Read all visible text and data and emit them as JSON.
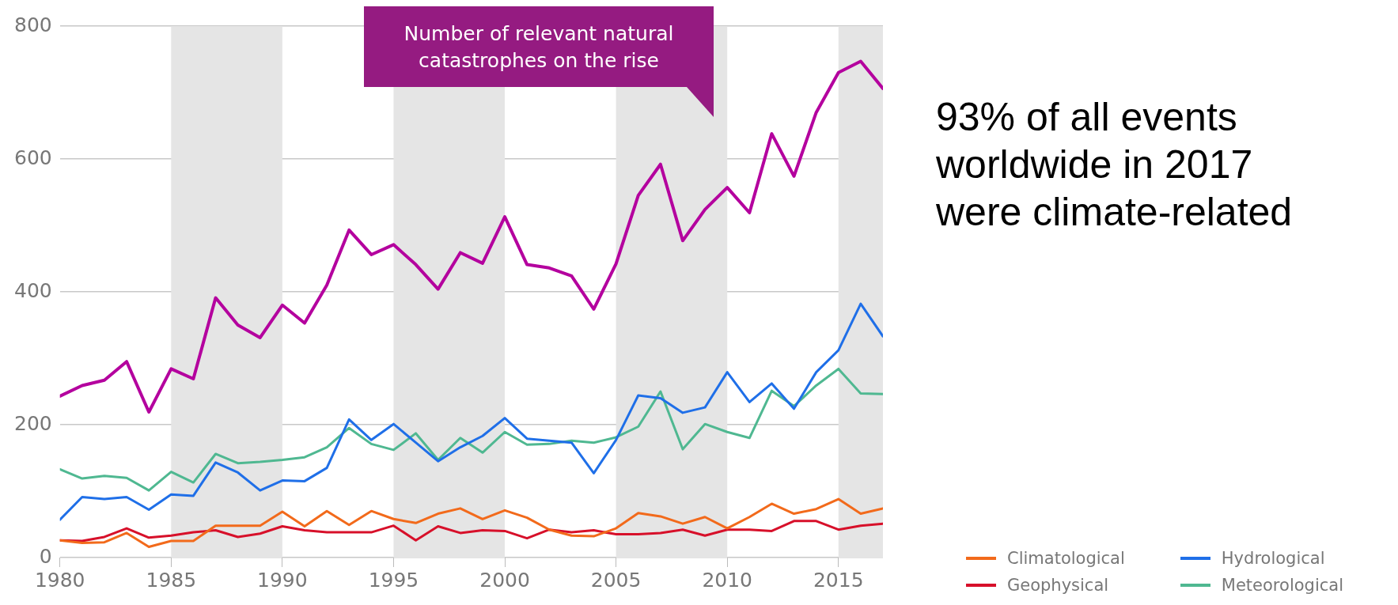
{
  "chart_data": {
    "type": "line",
    "x": [
      1980,
      1981,
      1982,
      1983,
      1984,
      1985,
      1986,
      1987,
      1988,
      1989,
      1990,
      1991,
      1992,
      1993,
      1994,
      1995,
      1996,
      1997,
      1998,
      1999,
      2000,
      2001,
      2002,
      2003,
      2004,
      2005,
      2006,
      2007,
      2008,
      2009,
      2010,
      2011,
      2012,
      2013,
      2014,
      2015,
      2016,
      2017
    ],
    "series": [
      {
        "name": "Climatological",
        "color": "#f26a1b",
        "values": [
          26,
          22,
          23,
          37,
          16,
          25,
          25,
          48,
          48,
          48,
          69,
          47,
          70,
          49,
          70,
          58,
          52,
          66,
          74,
          58,
          71,
          60,
          42,
          33,
          32,
          44,
          67,
          62,
          51,
          61,
          44,
          61,
          81,
          66,
          73,
          88,
          66,
          74
        ]
      },
      {
        "name": "Geophysical",
        "color": "#d7102a",
        "values": [
          26,
          25,
          31,
          44,
          30,
          33,
          38,
          41,
          31,
          36,
          47,
          41,
          38,
          38,
          38,
          48,
          26,
          47,
          37,
          41,
          40,
          29,
          42,
          38,
          41,
          35,
          35,
          37,
          42,
          33,
          42,
          42,
          40,
          55,
          55,
          42,
          48,
          51
        ]
      },
      {
        "name": "Hydrological",
        "color": "#1f6fe8",
        "values": [
          57,
          91,
          88,
          91,
          72,
          95,
          93,
          143,
          128,
          101,
          116,
          115,
          135,
          208,
          177,
          201,
          173,
          145,
          166,
          183,
          210,
          179,
          176,
          173,
          127,
          177,
          244,
          240,
          218,
          226,
          279,
          234,
          262,
          224,
          279,
          312,
          382,
          333
        ]
      },
      {
        "name": "Meteorological",
        "color": "#4fb891",
        "values": [
          133,
          119,
          123,
          120,
          101,
          129,
          113,
          156,
          142,
          144,
          147,
          151,
          166,
          195,
          171,
          162,
          187,
          147,
          180,
          158,
          189,
          170,
          171,
          176,
          173,
          181,
          197,
          250,
          163,
          201,
          189,
          180,
          251,
          228,
          259,
          284,
          247,
          246
        ]
      },
      {
        "color": "#b4009e",
        "values": [
          243,
          259,
          267,
          295,
          219,
          284,
          269,
          391,
          350,
          331,
          380,
          353,
          410,
          493,
          456,
          471,
          441,
          404,
          459,
          443,
          513,
          441,
          436,
          424,
          374,
          442,
          545,
          592,
          477,
          524,
          557,
          519,
          638,
          574,
          670,
          730,
          747,
          706
        ]
      }
    ],
    "xlim": [
      1980,
      2017
    ],
    "xticks": [
      1980,
      1985,
      1990,
      1995,
      2000,
      2005,
      2010,
      2015
    ],
    "ylim": [
      0,
      800
    ],
    "yticks": [
      0,
      200,
      400,
      600,
      800
    ],
    "bands": [
      {
        "axis": "x",
        "from": 1985,
        "to": 1990,
        "color": "#e5e5e5"
      },
      {
        "axis": "x",
        "from": 1995,
        "to": 2000,
        "color": "#e5e5e5"
      },
      {
        "axis": "x",
        "from": 2005,
        "to": 2010,
        "color": "#e5e5e5"
      },
      {
        "axis": "x",
        "from": 2015,
        "to": 2017,
        "color": "#e5e5e5"
      }
    ],
    "annotations": [
      "Number of relevant natural catastrophes on the rise",
      "93% of all events worldwide in 2017 were climate-related"
    ],
    "grid": "y",
    "legend": "bottom right",
    "marker": "none",
    "line_style": "solid"
  }
}
